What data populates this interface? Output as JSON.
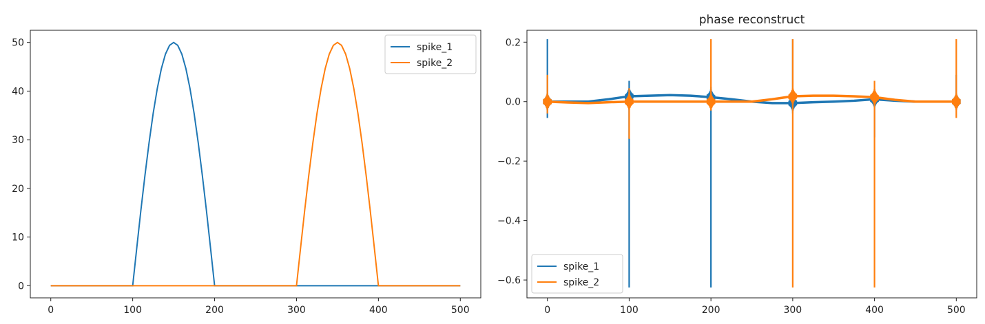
{
  "colors": {
    "spike_1": "#1f77b4",
    "spike_2": "#ff7f0e"
  },
  "chart_data": [
    {
      "type": "line",
      "title": "",
      "xlabel": "",
      "ylabel": "",
      "xlim": [
        -25,
        525
      ],
      "ylim": [
        -2.5,
        52.5
      ],
      "xticks": [
        0,
        100,
        200,
        300,
        400,
        500
      ],
      "yticks": [
        0,
        10,
        20,
        30,
        40,
        50
      ],
      "grid": false,
      "legend_position": "upper right",
      "series": [
        {
          "name": "spike_1",
          "color": "#1f77b4",
          "x": [
            0,
            100,
            105,
            110,
            115,
            120,
            125,
            130,
            135,
            140,
            145,
            150,
            155,
            160,
            165,
            170,
            175,
            180,
            185,
            190,
            195,
            200,
            500
          ],
          "y": [
            0,
            0,
            7.8,
            15.5,
            22.7,
            29.4,
            35.4,
            40.5,
            44.6,
            47.6,
            49.4,
            50,
            49.4,
            47.6,
            44.6,
            40.5,
            35.4,
            29.4,
            22.7,
            15.5,
            7.8,
            0,
            0
          ]
        },
        {
          "name": "spike_2",
          "color": "#ff7f0e",
          "x": [
            0,
            300,
            305,
            310,
            315,
            320,
            325,
            330,
            335,
            340,
            345,
            350,
            355,
            360,
            365,
            370,
            375,
            380,
            385,
            390,
            395,
            400,
            500
          ],
          "y": [
            0,
            0,
            7.8,
            15.5,
            22.7,
            29.4,
            35.4,
            40.5,
            44.6,
            47.6,
            49.4,
            50,
            49.4,
            47.6,
            44.6,
            40.5,
            35.4,
            29.4,
            22.7,
            15.5,
            7.8,
            0,
            0
          ]
        }
      ]
    },
    {
      "type": "line",
      "title": "phase reconstruct",
      "xlabel": "",
      "ylabel": "",
      "xlim": [
        -25,
        525
      ],
      "ylim": [
        -0.66,
        0.24
      ],
      "xticks": [
        0,
        100,
        200,
        300,
        400,
        500
      ],
      "yticks": [
        -0.6,
        -0.4,
        -0.2,
        0.0,
        0.2
      ],
      "ytick_labels": [
        "−0.6",
        "−0.4",
        "−0.2",
        "0.0",
        "0.2"
      ],
      "grid": false,
      "legend_position": "lower left",
      "series": [
        {
          "name": "spike_1",
          "color": "#1f77b4",
          "spikes": [
            {
              "x": 0,
              "high": 0.21,
              "low": -0.055
            },
            {
              "x": 100,
              "high": 0.07,
              "low": -0.625
            },
            {
              "x": 200,
              "high": 0.05,
              "low": -0.625
            },
            {
              "x": 300,
              "high": 0.21,
              "low": -0.04
            },
            {
              "x": 400,
              "high": 0.04,
              "low": -0.12
            },
            {
              "x": 500,
              "high": 0.09,
              "low": -0.02
            }
          ],
          "baseline": {
            "x": [
              0,
              25,
              50,
              75,
              100,
              125,
              150,
              175,
              200,
              225,
              250,
              275,
              300,
              325,
              350,
              375,
              400,
              425,
              450,
              475,
              500
            ],
            "y": [
              0.0,
              0.0,
              0.0,
              0.008,
              0.018,
              0.02,
              0.022,
              0.02,
              0.015,
              0.008,
              0.0,
              -0.005,
              -0.005,
              -0.002,
              0.0,
              0.003,
              0.008,
              0.003,
              0.0,
              0.0,
              0.0
            ]
          },
          "band": 0.018
        },
        {
          "name": "spike_2",
          "color": "#ff7f0e",
          "spikes": [
            {
              "x": 0,
              "high": 0.09,
              "low": -0.04
            },
            {
              "x": 100,
              "high": 0.045,
              "low": -0.125
            },
            {
              "x": 200,
              "high": 0.21,
              "low": -0.03
            },
            {
              "x": 300,
              "high": 0.21,
              "low": -0.625
            },
            {
              "x": 400,
              "high": 0.07,
              "low": -0.625
            },
            {
              "x": 500,
              "high": 0.21,
              "low": -0.055
            }
          ],
          "baseline": {
            "x": [
              0,
              25,
              50,
              75,
              100,
              125,
              150,
              175,
              200,
              225,
              250,
              275,
              300,
              325,
              350,
              375,
              400,
              425,
              450,
              475,
              500
            ],
            "y": [
              0.0,
              -0.003,
              -0.005,
              -0.002,
              0.0,
              0.0,
              0.0,
              0.0,
              0.0,
              0.0,
              0.0,
              0.008,
              0.018,
              0.02,
              0.02,
              0.018,
              0.015,
              0.006,
              0.0,
              0.0,
              0.0
            ]
          },
          "band": 0.018
        }
      ]
    }
  ]
}
